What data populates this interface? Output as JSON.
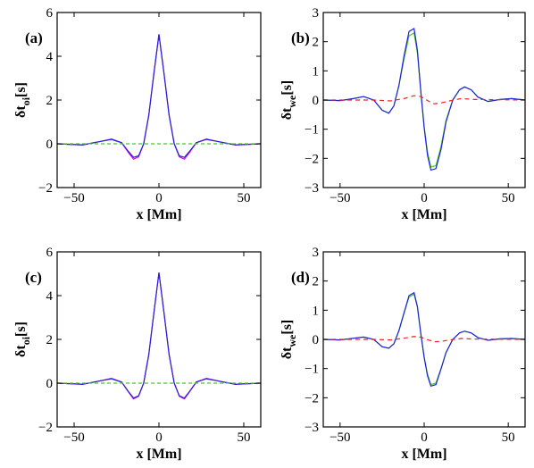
{
  "chart_data": [
    {
      "type": "line",
      "panel_label": "(a)",
      "xlabel": "x [Mm]",
      "ylabel_main": "δt",
      "ylabel_sub": "oi",
      "ylabel_unit": "[s]",
      "xlim": [
        -60,
        60
      ],
      "ylim": [
        -2,
        6
      ],
      "xticks": [
        -50,
        0,
        50
      ],
      "yticks": [
        -2,
        0,
        2,
        4,
        6
      ],
      "grid": false,
      "series": [
        {
          "color": "#dd00dd",
          "dash": "",
          "x": [
            -60,
            -45,
            -35,
            -28,
            -22,
            -18,
            -15,
            -12,
            -9,
            -6,
            -3,
            0,
            3,
            6,
            9,
            12,
            15,
            18,
            22,
            28,
            35,
            45,
            60
          ],
          "y": [
            0,
            -0.05,
            0.1,
            0.22,
            0.05,
            -0.4,
            -0.7,
            -0.6,
            0.0,
            1.3,
            3.2,
            5.0,
            3.2,
            1.3,
            0.0,
            -0.6,
            -0.7,
            -0.4,
            0.05,
            0.22,
            0.1,
            -0.05,
            0
          ]
        },
        {
          "color": "#2222dd",
          "dash": "",
          "x": [
            -60,
            -45,
            -35,
            -28,
            -22,
            -18,
            -15,
            -12,
            -9,
            -6,
            -3,
            0,
            3,
            6,
            9,
            12,
            15,
            18,
            22,
            28,
            35,
            45,
            60
          ],
          "y": [
            0,
            -0.05,
            0.1,
            0.2,
            0.05,
            -0.35,
            -0.62,
            -0.55,
            0.0,
            1.3,
            3.2,
            5.0,
            3.2,
            1.3,
            0.0,
            -0.55,
            -0.62,
            -0.35,
            0.05,
            0.2,
            0.1,
            -0.05,
            0
          ]
        },
        {
          "color": "#44cc22",
          "dash": "4,3",
          "x": [
            -60,
            0,
            60
          ],
          "y": [
            0,
            0,
            0
          ]
        }
      ]
    },
    {
      "type": "line",
      "panel_label": "(b)",
      "xlabel": "x [Mm]",
      "ylabel_main": "δt",
      "ylabel_sub": "we",
      "ylabel_unit": "[s]",
      "xlim": [
        -60,
        60
      ],
      "ylim": [
        -3,
        3
      ],
      "xticks": [
        -50,
        0,
        50
      ],
      "yticks": [
        -3,
        -2,
        -1,
        0,
        1,
        2,
        3
      ],
      "grid": false,
      "series": [
        {
          "color": "#44cc22",
          "dash": "",
          "x": [
            -60,
            -50,
            -42,
            -36,
            -30,
            -25,
            -21,
            -18,
            -15,
            -12,
            -9,
            -6,
            -4,
            -2,
            0,
            2,
            4,
            7,
            10,
            13,
            17,
            21,
            24,
            28,
            32,
            38,
            45,
            52,
            60
          ],
          "y": [
            0,
            -0.02,
            0.05,
            0.12,
            0.0,
            -0.35,
            -0.45,
            -0.2,
            0.5,
            1.4,
            2.2,
            2.3,
            1.6,
            0.3,
            -0.9,
            -1.8,
            -2.3,
            -2.25,
            -1.6,
            -0.7,
            0.0,
            0.35,
            0.45,
            0.35,
            0.1,
            -0.05,
            0.02,
            0.05,
            0
          ]
        },
        {
          "color": "#2222dd",
          "dash": "",
          "x": [
            -60,
            -50,
            -42,
            -36,
            -30,
            -25,
            -21,
            -18,
            -15,
            -12,
            -9,
            -6,
            -4,
            -2,
            0,
            2,
            4,
            7,
            10,
            13,
            17,
            21,
            24,
            28,
            32,
            38,
            45,
            52,
            60
          ],
          "y": [
            0,
            -0.02,
            0.05,
            0.12,
            0.0,
            -0.35,
            -0.45,
            -0.2,
            0.5,
            1.5,
            2.35,
            2.45,
            1.7,
            0.3,
            -0.95,
            -1.9,
            -2.4,
            -2.35,
            -1.7,
            -0.75,
            0.0,
            0.35,
            0.45,
            0.35,
            0.1,
            -0.05,
            0.02,
            0.05,
            0
          ]
        },
        {
          "color": "#ee2222",
          "dash": "5,4",
          "x": [
            -60,
            -30,
            -20,
            -12,
            -6,
            -2,
            0,
            3,
            6,
            10,
            15,
            22,
            30,
            60
          ],
          "y": [
            0,
            0.0,
            -0.03,
            0.05,
            0.15,
            0.12,
            0.05,
            -0.05,
            -0.13,
            -0.1,
            -0.03,
            0.05,
            0.02,
            0
          ]
        }
      ]
    },
    {
      "type": "line",
      "panel_label": "(c)",
      "xlabel": "x [Mm]",
      "ylabel_main": "δt",
      "ylabel_sub": "oi",
      "ylabel_unit": "[s]",
      "xlim": [
        -60,
        60
      ],
      "ylim": [
        -2,
        6
      ],
      "xticks": [
        -50,
        0,
        50
      ],
      "yticks": [
        -2,
        0,
        2,
        4,
        6
      ],
      "grid": false,
      "series": [
        {
          "color": "#dd00dd",
          "dash": "",
          "x": [
            -60,
            -45,
            -35,
            -28,
            -22,
            -18,
            -15,
            -12,
            -9,
            -6,
            -3,
            0,
            3,
            6,
            9,
            12,
            15,
            18,
            22,
            28,
            35,
            45,
            60
          ],
          "y": [
            0,
            -0.05,
            0.1,
            0.22,
            0.05,
            -0.4,
            -0.72,
            -0.6,
            0.0,
            1.3,
            3.2,
            5.05,
            3.2,
            1.3,
            0.0,
            -0.6,
            -0.72,
            -0.4,
            0.05,
            0.22,
            0.1,
            -0.05,
            0
          ]
        },
        {
          "color": "#2222dd",
          "dash": "",
          "x": [
            -60,
            -45,
            -35,
            -28,
            -22,
            -18,
            -15,
            -12,
            -9,
            -6,
            -3,
            0,
            3,
            6,
            9,
            12,
            15,
            18,
            22,
            28,
            35,
            45,
            60
          ],
          "y": [
            0,
            -0.05,
            0.1,
            0.2,
            0.05,
            -0.38,
            -0.68,
            -0.58,
            0.0,
            1.3,
            3.2,
            5.05,
            3.2,
            1.3,
            0.0,
            -0.58,
            -0.68,
            -0.38,
            0.05,
            0.2,
            0.1,
            -0.05,
            0
          ]
        },
        {
          "color": "#44cc22",
          "dash": "4,3",
          "x": [
            -60,
            0,
            60
          ],
          "y": [
            0,
            0,
            0
          ]
        }
      ]
    },
    {
      "type": "line",
      "panel_label": "(d)",
      "xlabel": "x [Mm]",
      "ylabel_main": "δt",
      "ylabel_sub": "we",
      "ylabel_unit": "[s]",
      "xlim": [
        -60,
        60
      ],
      "ylim": [
        -3,
        3
      ],
      "xticks": [
        -50,
        0,
        50
      ],
      "yticks": [
        -3,
        -2,
        -1,
        0,
        1,
        2,
        3
      ],
      "grid": false,
      "series": [
        {
          "color": "#44cc22",
          "dash": "",
          "x": [
            -60,
            -50,
            -42,
            -36,
            -30,
            -25,
            -21,
            -18,
            -15,
            -12,
            -9,
            -6,
            -4,
            -2,
            0,
            2,
            4,
            7,
            10,
            13,
            17,
            21,
            24,
            28,
            32,
            38,
            45,
            52,
            60
          ],
          "y": [
            0,
            -0.02,
            0.04,
            0.08,
            0.0,
            -0.25,
            -0.3,
            -0.15,
            0.3,
            0.9,
            1.45,
            1.55,
            1.1,
            0.2,
            -0.6,
            -1.2,
            -1.55,
            -1.5,
            -1.0,
            -0.45,
            0.0,
            0.22,
            0.28,
            0.22,
            0.06,
            -0.03,
            0.02,
            0.03,
            0
          ]
        },
        {
          "color": "#2222dd",
          "dash": "",
          "x": [
            -60,
            -50,
            -42,
            -36,
            -30,
            -25,
            -21,
            -18,
            -15,
            -12,
            -9,
            -6,
            -4,
            -2,
            0,
            2,
            4,
            7,
            10,
            13,
            17,
            21,
            24,
            28,
            32,
            38,
            45,
            52,
            60
          ],
          "y": [
            0,
            -0.02,
            0.04,
            0.08,
            0.0,
            -0.25,
            -0.3,
            -0.15,
            0.3,
            0.9,
            1.5,
            1.6,
            1.12,
            0.2,
            -0.62,
            -1.25,
            -1.6,
            -1.55,
            -1.02,
            -0.45,
            0.0,
            0.22,
            0.28,
            0.22,
            0.06,
            -0.03,
            0.02,
            0.03,
            0
          ]
        },
        {
          "color": "#ee2222",
          "dash": "5,4",
          "x": [
            -60,
            -30,
            -20,
            -12,
            -6,
            -2,
            0,
            3,
            6,
            10,
            15,
            22,
            30,
            60
          ],
          "y": [
            0,
            0.0,
            -0.02,
            0.04,
            0.1,
            0.08,
            0.03,
            -0.03,
            -0.08,
            -0.07,
            -0.02,
            0.03,
            0.01,
            0
          ]
        }
      ]
    }
  ]
}
